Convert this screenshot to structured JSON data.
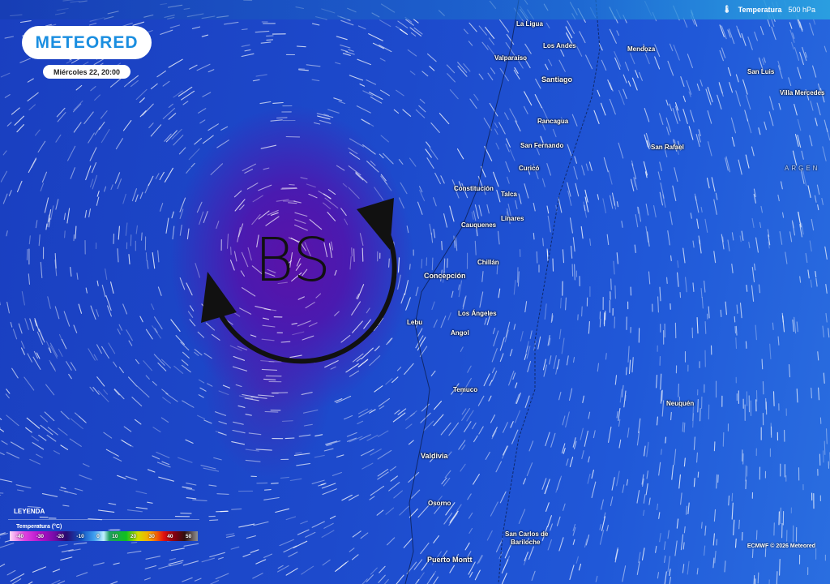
{
  "brand": {
    "logo_text": "METEORED",
    "date": "Miércoles 22, 20:00"
  },
  "variable": {
    "icon": "thermometer-icon",
    "label": "Temperatura",
    "level": "500 hPa"
  },
  "annotation": {
    "label": "BS"
  },
  "cities": [
    {
      "name": "La Ligua"
    },
    {
      "name": "Los Andes"
    },
    {
      "name": "Valparaíso"
    },
    {
      "name": "Mendoza"
    },
    {
      "name": "Santiago"
    },
    {
      "name": "San Luis"
    },
    {
      "name": "Villa Mercedes"
    },
    {
      "name": "Rancagua"
    },
    {
      "name": "San Fernando"
    },
    {
      "name": "San Rafael"
    },
    {
      "name": "Curicó"
    },
    {
      "name": "ARGEN"
    },
    {
      "name": "Constitución"
    },
    {
      "name": "Talca"
    },
    {
      "name": "Linares"
    },
    {
      "name": "Cauquenes"
    },
    {
      "name": "Chillán"
    },
    {
      "name": "Concepción"
    },
    {
      "name": "Los Ángeles"
    },
    {
      "name": "Lebu"
    },
    {
      "name": "Angol"
    },
    {
      "name": "Temuco"
    },
    {
      "name": "Neuquén"
    },
    {
      "name": "Valdivia"
    },
    {
      "name": "Osorno"
    },
    {
      "name": "San Carlos de"
    },
    {
      "name": "Bariloche"
    },
    {
      "name": "Puerto Montt"
    }
  ],
  "legend": {
    "title": "LEYENDA",
    "subtitle": "Temperatura (°C)",
    "ticks": [
      "-40",
      "-30",
      "-20",
      "-10",
      "0",
      "10",
      "20",
      "30",
      "40",
      "50"
    ],
    "colors": [
      "#ffd8f8",
      "#b010c8",
      "#2a0a70",
      "#40a0f0",
      "#20a060",
      "#10c020",
      "#ffa000",
      "#e01010",
      "#301010",
      "#909090"
    ]
  },
  "credit": "ECMWF © 2026 Meteored"
}
